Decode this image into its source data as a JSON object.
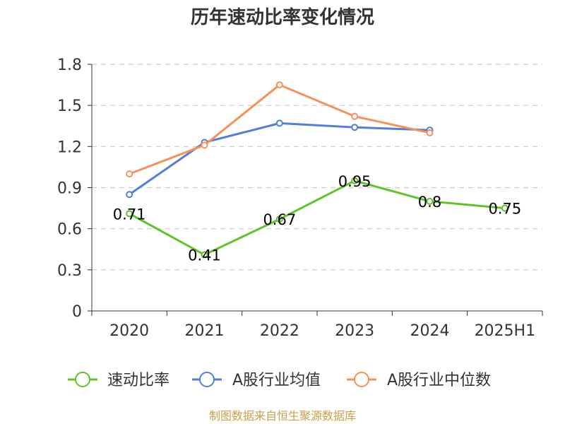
{
  "chart_data": {
    "type": "line",
    "title": "历年速动比率变化情况",
    "categories": [
      "2020",
      "2021",
      "2022",
      "2023",
      "2024",
      "2025H1"
    ],
    "ylim": [
      0,
      1.8
    ],
    "yticks": [
      "0",
      "0.3",
      "0.6",
      "0.9",
      "1.2",
      "1.5",
      "1.8"
    ],
    "grid": true,
    "legend_position": "bottom",
    "series": [
      {
        "name": "速动比率",
        "color": "#5ec42a",
        "values": [
          0.71,
          0.41,
          0.67,
          0.95,
          0.8,
          0.75
        ],
        "labels": [
          "0.71",
          "0.41",
          "0.67",
          "0.95",
          "0.8",
          "0.75"
        ],
        "show_labels": true
      },
      {
        "name": "A股行业均值",
        "color": "#4f7fd8",
        "values": [
          0.85,
          1.23,
          1.37,
          1.34,
          1.32,
          null
        ],
        "show_labels": false
      },
      {
        "name": "A股行业中位数",
        "color": "#f7905a",
        "values": [
          1.0,
          1.21,
          1.65,
          1.42,
          1.3,
          null
        ],
        "show_labels": false
      }
    ]
  },
  "source": "制图数据来自恒生聚源数据库"
}
